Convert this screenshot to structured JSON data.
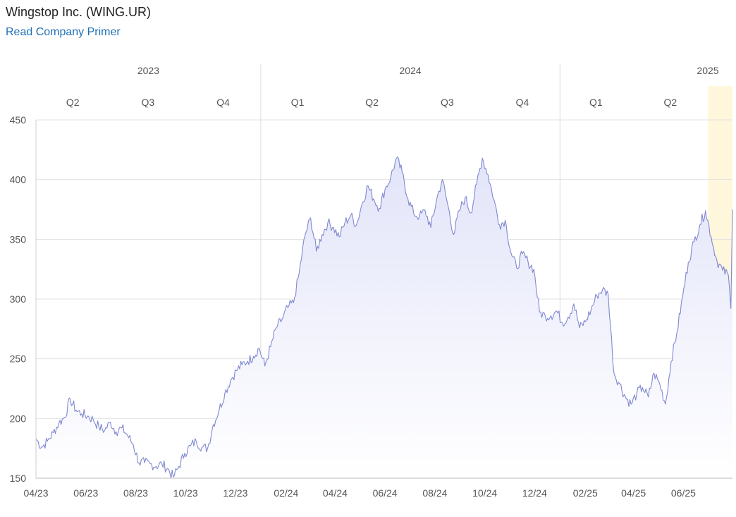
{
  "header": {
    "title": "Wingstop Inc. (WING.UR)",
    "primer_link": "Read Company Primer"
  },
  "chart_data": {
    "type": "area",
    "title": "",
    "xlabel": "",
    "ylabel": "",
    "ylim": [
      150,
      450
    ],
    "yticks": [
      150,
      200,
      250,
      300,
      350,
      400,
      450
    ],
    "grid": true,
    "legend": "none",
    "colors": {
      "line": "#8088d0",
      "fill_top": "#e2e4f9",
      "fill_bottom": "#ffffff",
      "highlight": "#fff7dc"
    },
    "years": [
      {
        "label": "2023",
        "boundary": "2023-04-01"
      },
      {
        "label": "2024",
        "boundary": "2024-01-01"
      },
      {
        "label": "2025",
        "boundary": "2025-01-01"
      }
    ],
    "quarters": [
      {
        "label": "Q2",
        "date": "2023-05-16"
      },
      {
        "label": "Q3",
        "date": "2023-08-16"
      },
      {
        "label": "Q4",
        "date": "2023-11-16"
      },
      {
        "label": "Q1",
        "date": "2024-02-15"
      },
      {
        "label": "Q2",
        "date": "2024-05-16"
      },
      {
        "label": "Q3",
        "date": "2024-08-16"
      },
      {
        "label": "Q4",
        "date": "2024-11-16"
      },
      {
        "label": "Q1",
        "date": "2025-02-14"
      },
      {
        "label": "Q2",
        "date": "2025-05-16"
      }
    ],
    "xticks": [
      {
        "label": "04/23",
        "date": "2023-04-01"
      },
      {
        "label": "06/23",
        "date": "2023-06-01"
      },
      {
        "label": "08/23",
        "date": "2023-08-01"
      },
      {
        "label": "10/23",
        "date": "2023-10-01"
      },
      {
        "label": "12/23",
        "date": "2023-12-01"
      },
      {
        "label": "02/24",
        "date": "2024-02-01"
      },
      {
        "label": "04/24",
        "date": "2024-04-01"
      },
      {
        "label": "06/24",
        "date": "2024-06-01"
      },
      {
        "label": "08/24",
        "date": "2024-08-01"
      },
      {
        "label": "10/24",
        "date": "2024-10-01"
      },
      {
        "label": "12/24",
        "date": "2024-12-01"
      },
      {
        "label": "02/25",
        "date": "2025-02-01"
      },
      {
        "label": "04/25",
        "date": "2025-04-01"
      },
      {
        "label": "06/25",
        "date": "2025-06-01"
      }
    ],
    "highlight": {
      "start": "2025-07-01",
      "end": "2025-07-31"
    },
    "series": [
      {
        "x": [
          "2023-04-01",
          "2023-04-08",
          "2023-04-15",
          "2023-04-22",
          "2023-04-29",
          "2023-05-06",
          "2023-05-13",
          "2023-05-20",
          "2023-05-27",
          "2023-06-03",
          "2023-06-10",
          "2023-06-17",
          "2023-06-24",
          "2023-07-01",
          "2023-07-08",
          "2023-07-15",
          "2023-07-22",
          "2023-07-29",
          "2023-08-05",
          "2023-08-12",
          "2023-08-19",
          "2023-08-26",
          "2023-09-02",
          "2023-09-09",
          "2023-09-16",
          "2023-09-23",
          "2023-09-30",
          "2023-10-07",
          "2023-10-14",
          "2023-10-21",
          "2023-10-28",
          "2023-11-04",
          "2023-11-11",
          "2023-11-18",
          "2023-11-25",
          "2023-12-02",
          "2023-12-09",
          "2023-12-16",
          "2023-12-23",
          "2023-12-30",
          "2024-01-06",
          "2024-01-13",
          "2024-01-20",
          "2024-01-27",
          "2024-02-03",
          "2024-02-10",
          "2024-02-17",
          "2024-02-24",
          "2024-03-02",
          "2024-03-09",
          "2024-03-16",
          "2024-03-23",
          "2024-03-30",
          "2024-04-06",
          "2024-04-13",
          "2024-04-20",
          "2024-04-27",
          "2024-05-04",
          "2024-05-11",
          "2024-05-18",
          "2024-05-25",
          "2024-06-01",
          "2024-06-08",
          "2024-06-15",
          "2024-06-22",
          "2024-06-29",
          "2024-07-06",
          "2024-07-13",
          "2024-07-20",
          "2024-07-27",
          "2024-08-03",
          "2024-08-10",
          "2024-08-17",
          "2024-08-24",
          "2024-08-31",
          "2024-09-07",
          "2024-09-14",
          "2024-09-21",
          "2024-09-28",
          "2024-10-05",
          "2024-10-12",
          "2024-10-19",
          "2024-10-26",
          "2024-11-02",
          "2024-11-09",
          "2024-11-16",
          "2024-11-23",
          "2024-11-30",
          "2024-12-07",
          "2024-12-14",
          "2024-12-21",
          "2024-12-28",
          "2025-01-04",
          "2025-01-11",
          "2025-01-18",
          "2025-01-25",
          "2025-02-01",
          "2025-02-08",
          "2025-02-15",
          "2025-02-22",
          "2025-03-01",
          "2025-03-08",
          "2025-03-15",
          "2025-03-22",
          "2025-03-29",
          "2025-04-05",
          "2025-04-12",
          "2025-04-19",
          "2025-04-26",
          "2025-05-03",
          "2025-05-10",
          "2025-05-17",
          "2025-05-24",
          "2025-05-31",
          "2025-06-07",
          "2025-06-14",
          "2025-06-21",
          "2025-06-28",
          "2025-07-05",
          "2025-07-12",
          "2025-07-19",
          "2025-07-26",
          "2025-07-29",
          "2025-07-31"
        ],
        "y": [
          183,
          176,
          181,
          188,
          196,
          201,
          216,
          207,
          204,
          202,
          199,
          193,
          190,
          197,
          189,
          192,
          186,
          178,
          163,
          163,
          162,
          160,
          162,
          158,
          151,
          160,
          171,
          177,
          181,
          176,
          175,
          195,
          207,
          221,
          232,
          240,
          245,
          248,
          252,
          259,
          244,
          260,
          276,
          283,
          293,
          297,
          322,
          353,
          368,
          340,
          354,
          364,
          360,
          352,
          364,
          370,
          362,
          380,
          395,
          384,
          376,
          392,
          402,
          418,
          406,
          384,
          372,
          369,
          374,
          360,
          383,
          400,
          378,
          354,
          374,
          385,
          372,
          396,
          418,
          404,
          384,
          362,
          366,
          339,
          326,
          338,
          331,
          325,
          289,
          286,
          286,
          290,
          280,
          285,
          296,
          276,
          281,
          291,
          303,
          308,
          304,
          238,
          229,
          218,
          212,
          221,
          226,
          218,
          238,
          229,
          212,
          248,
          272,
          302,
          331,
          348,
          362,
          374,
          352,
          332,
          324,
          320,
          292,
          375
        ]
      }
    ]
  }
}
